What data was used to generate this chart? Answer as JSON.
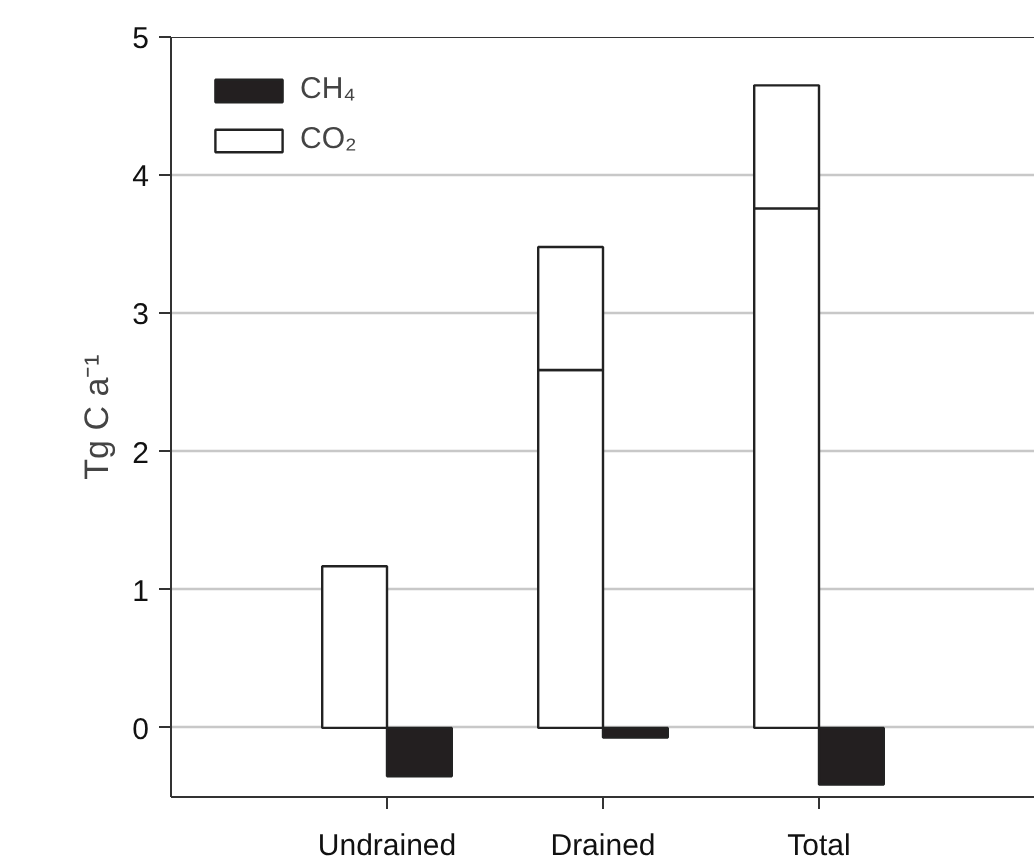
{
  "chart_data": {
    "type": "bar",
    "ylabel": "Tg C a⁻¹",
    "categories": [
      "Undrained",
      "Drained",
      "Total"
    ],
    "stacked": true,
    "series": [
      {
        "name": "CH₄",
        "color": "#231f20",
        "values": [
          -0.35,
          -0.07,
          -0.41
        ]
      },
      {
        "name": "CO₂",
        "color": "#ffffff",
        "values": [
          1.17,
          2.59,
          3.76
        ]
      },
      {
        "color": "#ffffff",
        "values": [
          null,
          0.89,
          0.89
        ]
      }
    ],
    "ylim": [
      -0.5,
      5
    ],
    "yticks": [
      0,
      1,
      2,
      3,
      4,
      5
    ],
    "grid": "y",
    "legend": "top left"
  }
}
